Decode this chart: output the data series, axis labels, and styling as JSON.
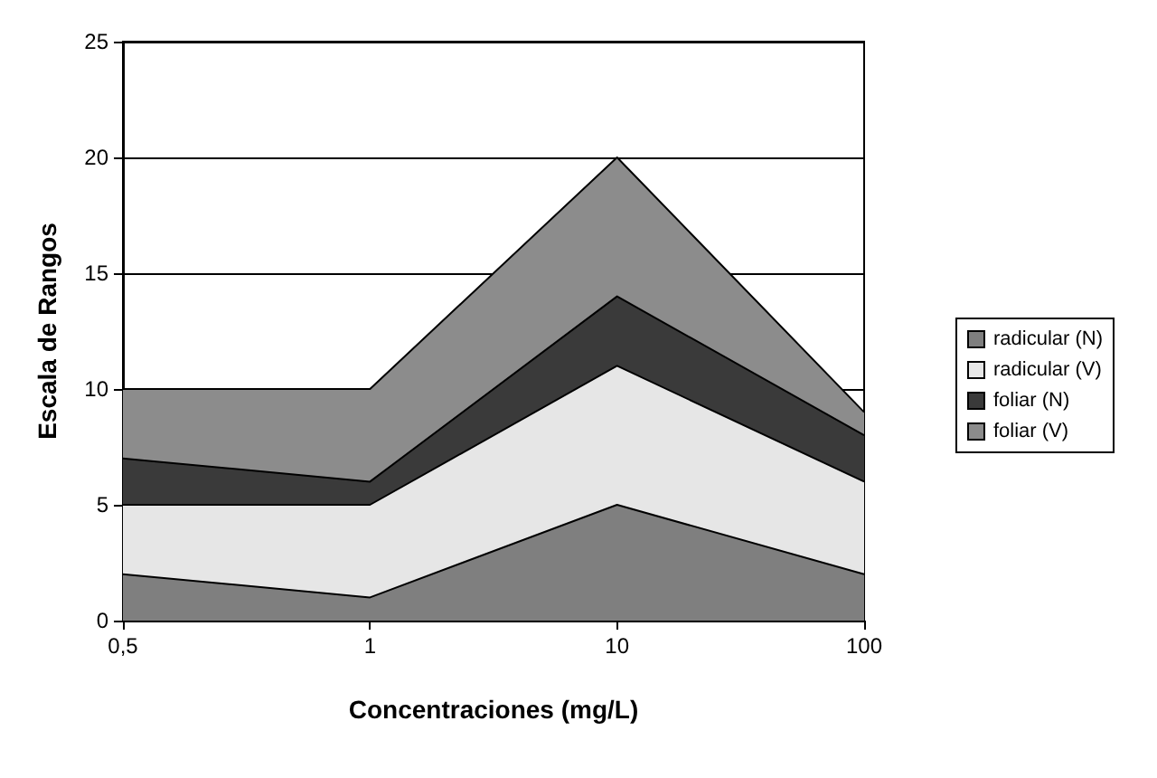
{
  "chart_data": {
    "type": "area",
    "stacked": true,
    "xlabel": "Concentraciones (mg/L)",
    "ylabel": "Escala de Rangos",
    "categories": [
      "0,5",
      "1",
      "10",
      "100"
    ],
    "series": [
      {
        "name": "radicular (N)",
        "color": "#7f7f7f",
        "values": [
          2,
          1,
          5,
          2
        ]
      },
      {
        "name": "radicular (V)",
        "color": "#e6e6e6",
        "values": [
          3,
          4,
          6,
          4
        ]
      },
      {
        "name": "foliar (N)",
        "color": "#3a3a3a",
        "values": [
          2,
          1,
          3,
          2
        ]
      },
      {
        "name": "foliar (V)",
        "color": "#8c8c8c",
        "values": [
          3,
          4,
          6,
          1
        ]
      }
    ],
    "ylim": [
      0,
      25
    ],
    "yticks": [
      0,
      5,
      10,
      15,
      20,
      25
    ],
    "grid": "y",
    "legend": "right"
  }
}
